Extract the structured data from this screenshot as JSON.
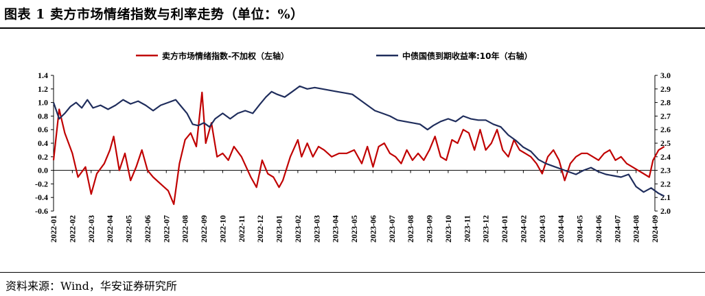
{
  "title": "图表 1 卖方市场情绪指数与利率走势（单位：%）",
  "source": "资料来源：Wind，华安证券研究所",
  "colors": {
    "sentiment": "#c00000",
    "yield": "#1f2d5c",
    "axis": "#000000"
  },
  "chart_data": {
    "type": "line",
    "title": "图表 1 卖方市场情绪指数与利率走势（单位：%）",
    "x_labels": [
      "2022-01",
      "2022-02",
      "2022-03",
      "2022-04",
      "2022-05",
      "2022-06",
      "2022-07",
      "2022-08",
      "2022-09",
      "2022-10",
      "2022-11",
      "2022-12",
      "2023-01",
      "2023-02",
      "2023-03",
      "2023-04",
      "2023-05",
      "2023-06",
      "2023-07",
      "2023-08",
      "2023-09",
      "2023-10",
      "2023-11",
      "2023-12",
      "2024-01",
      "2024-02",
      "2024-03",
      "2024-04",
      "2024-05",
      "2024-06",
      "2024-07",
      "2024-08",
      "2024-09"
    ],
    "y_left": {
      "min": -0.6,
      "max": 1.4,
      "ticks": [
        "1.4",
        "1.2",
        "1.0",
        "0.8",
        "0.6",
        "0.4",
        "0.2",
        "0.0",
        "-0.2",
        "-0.4",
        "-0.6"
      ]
    },
    "y_right": {
      "min": 2.0,
      "max": 3.0,
      "ticks": [
        "3.0",
        "2.9",
        "2.8",
        "2.7",
        "2.6",
        "2.5",
        "2.4",
        "2.3",
        "2.2",
        "2.1",
        "2.0"
      ]
    },
    "series": [
      {
        "name": "卖方市场情绪指数-不加权（左轴）",
        "axis": "left",
        "color": "#c00000",
        "values": [
          [
            0,
            0.15
          ],
          [
            0.3,
            0.9
          ],
          [
            0.6,
            0.55
          ],
          [
            1.0,
            0.25
          ],
          [
            1.3,
            -0.1
          ],
          [
            1.7,
            0.05
          ],
          [
            2.0,
            -0.35
          ],
          [
            2.3,
            -0.05
          ],
          [
            2.7,
            0.1
          ],
          [
            3.0,
            0.3
          ],
          [
            3.2,
            0.5
          ],
          [
            3.5,
            0.0
          ],
          [
            3.8,
            0.25
          ],
          [
            4.1,
            -0.15
          ],
          [
            4.4,
            0.05
          ],
          [
            4.7,
            0.3
          ],
          [
            5.0,
            0.0
          ],
          [
            5.3,
            -0.1
          ],
          [
            5.7,
            -0.2
          ],
          [
            6.1,
            -0.3
          ],
          [
            6.4,
            -0.5
          ],
          [
            6.7,
            0.1
          ],
          [
            7.0,
            0.45
          ],
          [
            7.3,
            0.55
          ],
          [
            7.6,
            0.35
          ],
          [
            7.9,
            1.15
          ],
          [
            8.1,
            0.4
          ],
          [
            8.4,
            0.7
          ],
          [
            8.7,
            0.2
          ],
          [
            9.0,
            0.25
          ],
          [
            9.3,
            0.15
          ],
          [
            9.6,
            0.35
          ],
          [
            10.0,
            0.2
          ],
          [
            10.5,
            -0.1
          ],
          [
            10.8,
            -0.25
          ],
          [
            11.1,
            0.15
          ],
          [
            11.4,
            -0.05
          ],
          [
            11.7,
            -0.1
          ],
          [
            12.0,
            -0.25
          ],
          [
            12.2,
            -0.15
          ],
          [
            12.6,
            0.2
          ],
          [
            13.0,
            0.45
          ],
          [
            13.2,
            0.2
          ],
          [
            13.5,
            0.4
          ],
          [
            13.8,
            0.2
          ],
          [
            14.1,
            0.35
          ],
          [
            14.4,
            0.3
          ],
          [
            14.8,
            0.2
          ],
          [
            15.2,
            0.25
          ],
          [
            15.6,
            0.25
          ],
          [
            16.0,
            0.3
          ],
          [
            16.4,
            0.1
          ],
          [
            16.7,
            0.35
          ],
          [
            17.0,
            0.05
          ],
          [
            17.3,
            0.35
          ],
          [
            17.6,
            0.4
          ],
          [
            17.9,
            0.25
          ],
          [
            18.2,
            0.2
          ],
          [
            18.5,
            0.1
          ],
          [
            18.8,
            0.3
          ],
          [
            19.1,
            0.15
          ],
          [
            19.4,
            0.25
          ],
          [
            19.7,
            0.15
          ],
          [
            20.0,
            0.3
          ],
          [
            20.3,
            0.5
          ],
          [
            20.6,
            0.2
          ],
          [
            20.9,
            0.15
          ],
          [
            21.2,
            0.45
          ],
          [
            21.5,
            0.4
          ],
          [
            21.8,
            0.6
          ],
          [
            22.1,
            0.55
          ],
          [
            22.4,
            0.3
          ],
          [
            22.7,
            0.6
          ],
          [
            23.0,
            0.3
          ],
          [
            23.3,
            0.4
          ],
          [
            23.6,
            0.6
          ],
          [
            23.9,
            0.3
          ],
          [
            24.2,
            0.2
          ],
          [
            24.5,
            0.45
          ],
          [
            24.8,
            0.3
          ],
          [
            25.1,
            0.25
          ],
          [
            25.4,
            0.2
          ],
          [
            25.7,
            0.1
          ],
          [
            26.0,
            -0.05
          ],
          [
            26.3,
            0.2
          ],
          [
            26.6,
            0.3
          ],
          [
            26.9,
            0.15
          ],
          [
            27.2,
            -0.15
          ],
          [
            27.5,
            0.1
          ],
          [
            27.8,
            0.2
          ],
          [
            28.1,
            0.25
          ],
          [
            28.4,
            0.25
          ],
          [
            28.7,
            0.2
          ],
          [
            29.0,
            0.15
          ],
          [
            29.3,
            0.25
          ],
          [
            29.6,
            0.3
          ],
          [
            29.9,
            0.15
          ],
          [
            30.2,
            0.2
          ],
          [
            30.5,
            0.1
          ],
          [
            30.8,
            0.05
          ],
          [
            31.1,
            0.0
          ],
          [
            31.4,
            -0.05
          ],
          [
            31.7,
            -0.1
          ],
          [
            31.9,
            0.15
          ],
          [
            32.2,
            0.3
          ],
          [
            32.5,
            0.35
          ]
        ]
      },
      {
        "name": "中债国债到期收益率:10年（右轴）",
        "axis": "right",
        "color": "#1f2d5c",
        "values": [
          [
            0,
            2.8
          ],
          [
            0.3,
            2.68
          ],
          [
            0.6,
            2.72
          ],
          [
            0.9,
            2.77
          ],
          [
            1.2,
            2.8
          ],
          [
            1.5,
            2.76
          ],
          [
            1.8,
            2.82
          ],
          [
            2.1,
            2.76
          ],
          [
            2.5,
            2.78
          ],
          [
            2.9,
            2.75
          ],
          [
            3.3,
            2.78
          ],
          [
            3.7,
            2.82
          ],
          [
            4.1,
            2.79
          ],
          [
            4.5,
            2.81
          ],
          [
            4.9,
            2.78
          ],
          [
            5.3,
            2.74
          ],
          [
            5.7,
            2.78
          ],
          [
            6.1,
            2.8
          ],
          [
            6.5,
            2.82
          ],
          [
            6.8,
            2.77
          ],
          [
            7.1,
            2.72
          ],
          [
            7.4,
            2.64
          ],
          [
            7.7,
            2.63
          ],
          [
            8.0,
            2.65
          ],
          [
            8.3,
            2.62
          ],
          [
            8.6,
            2.68
          ],
          [
            9.0,
            2.72
          ],
          [
            9.4,
            2.68
          ],
          [
            9.8,
            2.72
          ],
          [
            10.2,
            2.74
          ],
          [
            10.6,
            2.72
          ],
          [
            11.0,
            2.79
          ],
          [
            11.3,
            2.84
          ],
          [
            11.6,
            2.88
          ],
          [
            11.9,
            2.86
          ],
          [
            12.3,
            2.84
          ],
          [
            12.7,
            2.88
          ],
          [
            13.1,
            2.92
          ],
          [
            13.5,
            2.9
          ],
          [
            13.9,
            2.91
          ],
          [
            14.3,
            2.9
          ],
          [
            14.7,
            2.89
          ],
          [
            15.1,
            2.88
          ],
          [
            15.5,
            2.87
          ],
          [
            15.9,
            2.86
          ],
          [
            16.3,
            2.82
          ],
          [
            16.7,
            2.78
          ],
          [
            17.1,
            2.74
          ],
          [
            17.5,
            2.72
          ],
          [
            17.9,
            2.7
          ],
          [
            18.3,
            2.67
          ],
          [
            18.7,
            2.66
          ],
          [
            19.1,
            2.65
          ],
          [
            19.5,
            2.64
          ],
          [
            19.9,
            2.6
          ],
          [
            20.2,
            2.63
          ],
          [
            20.6,
            2.66
          ],
          [
            21.0,
            2.68
          ],
          [
            21.4,
            2.66
          ],
          [
            21.8,
            2.7
          ],
          [
            22.2,
            2.68
          ],
          [
            22.6,
            2.67
          ],
          [
            23.0,
            2.67
          ],
          [
            23.4,
            2.64
          ],
          [
            23.8,
            2.62
          ],
          [
            24.2,
            2.56
          ],
          [
            24.6,
            2.52
          ],
          [
            25.0,
            2.47
          ],
          [
            25.4,
            2.44
          ],
          [
            25.8,
            2.38
          ],
          [
            26.2,
            2.35
          ],
          [
            26.6,
            2.33
          ],
          [
            27.0,
            2.31
          ],
          [
            27.4,
            2.29
          ],
          [
            27.8,
            2.27
          ],
          [
            28.2,
            2.3
          ],
          [
            28.6,
            2.32
          ],
          [
            29.0,
            2.29
          ],
          [
            29.4,
            2.27
          ],
          [
            29.8,
            2.26
          ],
          [
            30.2,
            2.25
          ],
          [
            30.6,
            2.27
          ],
          [
            31.0,
            2.18
          ],
          [
            31.4,
            2.14
          ],
          [
            31.8,
            2.17
          ],
          [
            32.2,
            2.13
          ],
          [
            32.5,
            2.11
          ]
        ]
      }
    ]
  }
}
